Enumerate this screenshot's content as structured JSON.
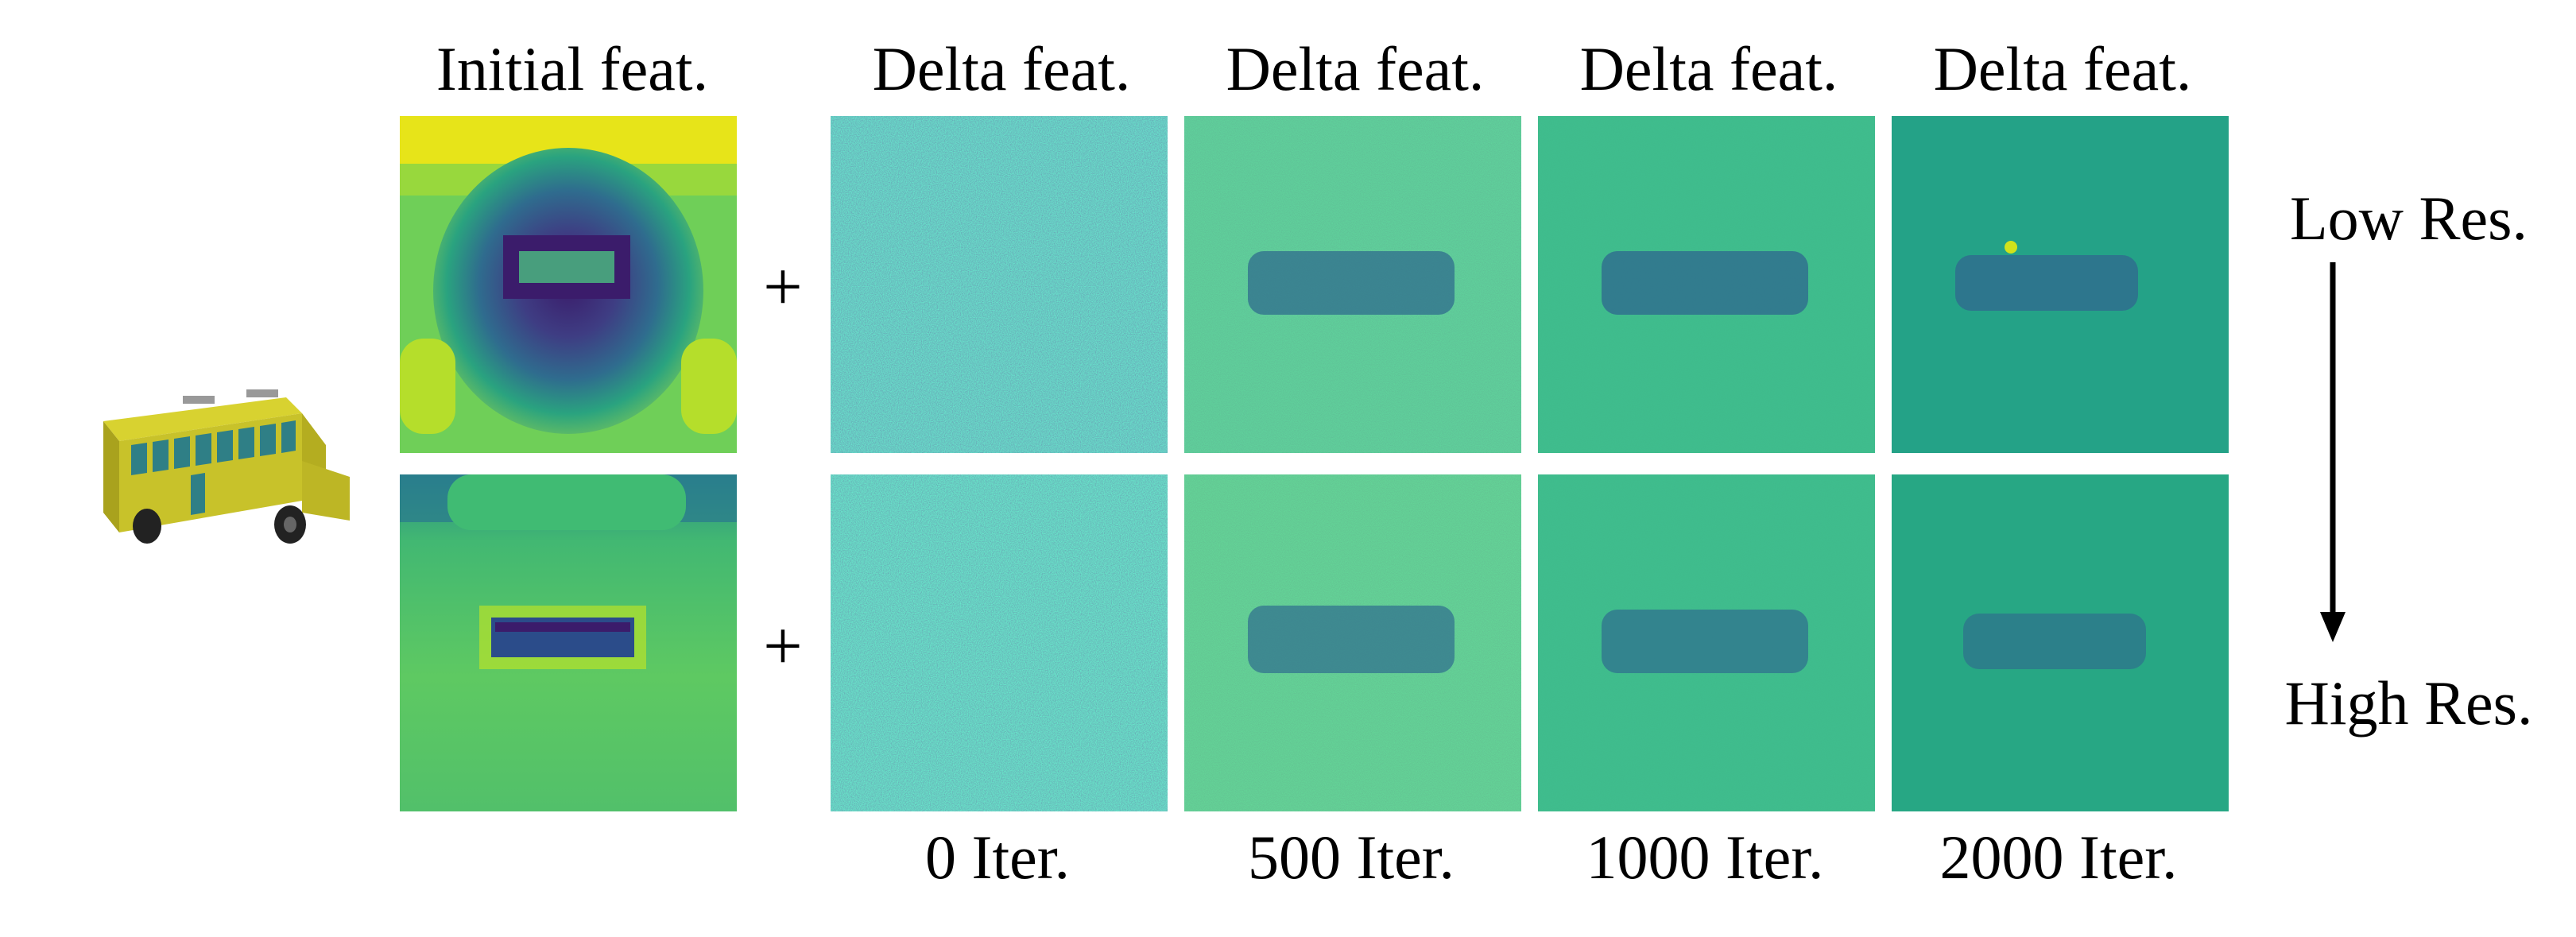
{
  "headers": {
    "initial": "Initial feat.",
    "delta": [
      "Delta feat.",
      "Delta feat.",
      "Delta feat.",
      "Delta feat."
    ]
  },
  "iterations": [
    "0 Iter.",
    "500 Iter.",
    "1000 Iter.",
    "2000 Iter."
  ],
  "resolution": {
    "low": "Low Res.",
    "high": "High Res."
  },
  "operator": "+",
  "colors": {
    "viridis_dark": "#3b1c6b",
    "viridis_blue": "#2f6c8e",
    "viridis_teal": "#2aa37f",
    "viridis_green": "#53c06b",
    "viridis_yellow": "#e7e419",
    "bus_yellow": "#c8c22a"
  }
}
